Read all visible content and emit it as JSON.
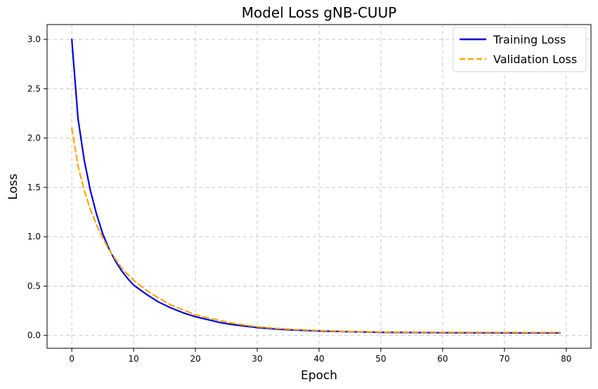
{
  "chart_data": {
    "type": "line",
    "title": "Model Loss gNB-CUUP",
    "xlabel": "Epoch",
    "ylabel": "Loss",
    "xlim": [
      -4,
      84
    ],
    "ylim": [
      -0.13,
      3.15
    ],
    "xticks": [
      0,
      10,
      20,
      30,
      40,
      50,
      60,
      70,
      80
    ],
    "yticks": [
      0.0,
      0.5,
      1.0,
      1.5,
      2.0,
      2.5,
      3.0
    ],
    "xtick_labels": [
      "0",
      "10",
      "20",
      "30",
      "40",
      "50",
      "60",
      "70",
      "80"
    ],
    "ytick_labels": [
      "0.0",
      "0.5",
      "1.0",
      "1.5",
      "2.0",
      "2.5",
      "3.0"
    ],
    "grid": true,
    "legend_position": "top-right",
    "series": [
      {
        "name": "Training Loss",
        "color": "#0000dd",
        "style": "solid",
        "x": [
          0,
          1,
          2,
          3,
          4,
          5,
          6,
          7,
          8,
          9,
          10,
          12,
          14,
          16,
          18,
          20,
          22,
          24,
          26,
          28,
          30,
          33,
          36,
          40,
          45,
          50,
          55,
          60,
          65,
          70,
          75,
          79
        ],
        "values": [
          3.0,
          2.2,
          1.78,
          1.47,
          1.23,
          1.03,
          0.88,
          0.76,
          0.66,
          0.58,
          0.51,
          0.42,
          0.34,
          0.28,
          0.23,
          0.19,
          0.16,
          0.13,
          0.11,
          0.095,
          0.08,
          0.065,
          0.055,
          0.045,
          0.038,
          0.032,
          0.03,
          0.028,
          0.027,
          0.026,
          0.025,
          0.025
        ]
      },
      {
        "name": "Validation Loss",
        "color": "#ffa500",
        "style": "dashed",
        "x": [
          0,
          1,
          2,
          3,
          4,
          5,
          6,
          7,
          8,
          9,
          10,
          12,
          14,
          16,
          18,
          20,
          22,
          24,
          26,
          28,
          30,
          33,
          36,
          40,
          45,
          50,
          55,
          60,
          65,
          70,
          75,
          79
        ],
        "values": [
          2.1,
          1.72,
          1.47,
          1.28,
          1.12,
          0.99,
          0.87,
          0.78,
          0.69,
          0.62,
          0.56,
          0.46,
          0.38,
          0.31,
          0.26,
          0.21,
          0.18,
          0.15,
          0.125,
          0.105,
          0.088,
          0.072,
          0.06,
          0.05,
          0.04,
          0.035,
          0.033,
          0.032,
          0.031,
          0.031,
          0.03,
          0.03
        ]
      }
    ]
  }
}
